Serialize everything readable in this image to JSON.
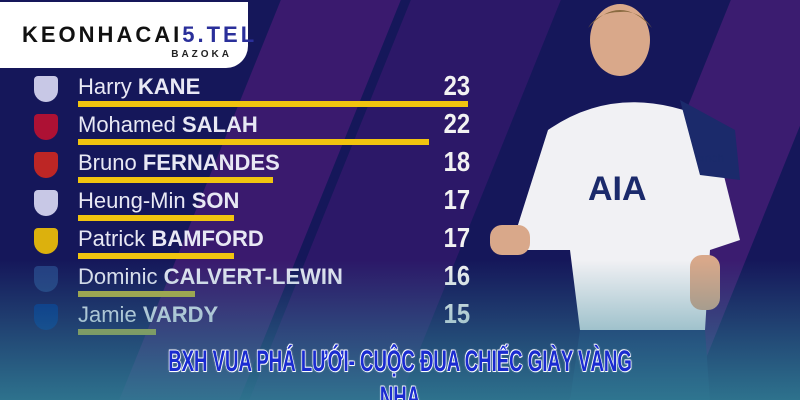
{
  "logo": {
    "text_main": "KEONHACAI",
    "text_accent": "5.TEL",
    "subtitle": "BAZOKA"
  },
  "scorers": [
    {
      "first": "Harry",
      "last": "KANE",
      "goals": 23,
      "crest_color": "#e8e8ff"
    },
    {
      "first": "Mohamed",
      "last": "SALAH",
      "goals": 22,
      "crest_color": "#c8102e"
    },
    {
      "first": "Bruno",
      "last": "FERNANDES",
      "goals": 18,
      "crest_color": "#da291c"
    },
    {
      "first": "Heung-Min",
      "last": "SON",
      "goals": 17,
      "crest_color": "#e8e8ff"
    },
    {
      "first": "Patrick",
      "last": "BAMFORD",
      "goals": 17,
      "crest_color": "#ffcd00"
    },
    {
      "first": "Dominic",
      "last": "CALVERT-LEWIN",
      "goals": 16,
      "crest_color": "#274488"
    },
    {
      "first": "Jamie",
      "last": "VARDY",
      "goals": 15,
      "crest_color": "#003090"
    }
  ],
  "jersey": {
    "sponsor": "AIA",
    "sleeve": "cinch"
  },
  "headline": "BXH VUA PHÁ LƯỚI- CUỘC ĐUA CHIẾC GIÀY VÀNG NHA",
  "colors": {
    "background": "#15175a",
    "bar": "#f1c40f",
    "headline": "#1a2bd0"
  }
}
